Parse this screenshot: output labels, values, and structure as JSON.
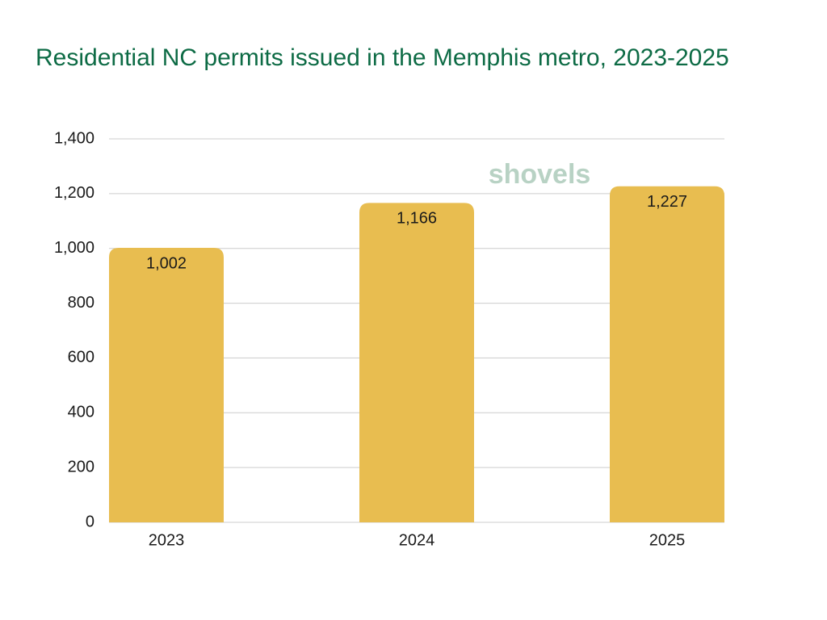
{
  "chart_data": {
    "type": "bar",
    "title": "Residential NC permits issued in the Memphis metro, 2023-2025",
    "watermark": "shovels",
    "categories": [
      "2023",
      "2024",
      "2025"
    ],
    "values": [
      1002,
      1166,
      1227
    ],
    "value_labels": [
      "1,002",
      "1,166",
      "1,227"
    ],
    "color": "#e8bd50",
    "ylim": [
      0,
      1400
    ],
    "yticks": [
      0,
      200,
      400,
      600,
      800,
      {
        "value": 1000,
        "label": "1,000"
      },
      {
        "value": 1200,
        "label": "1,200"
      },
      {
        "value": 1400,
        "label": "1,400"
      }
    ],
    "grid": true
  }
}
